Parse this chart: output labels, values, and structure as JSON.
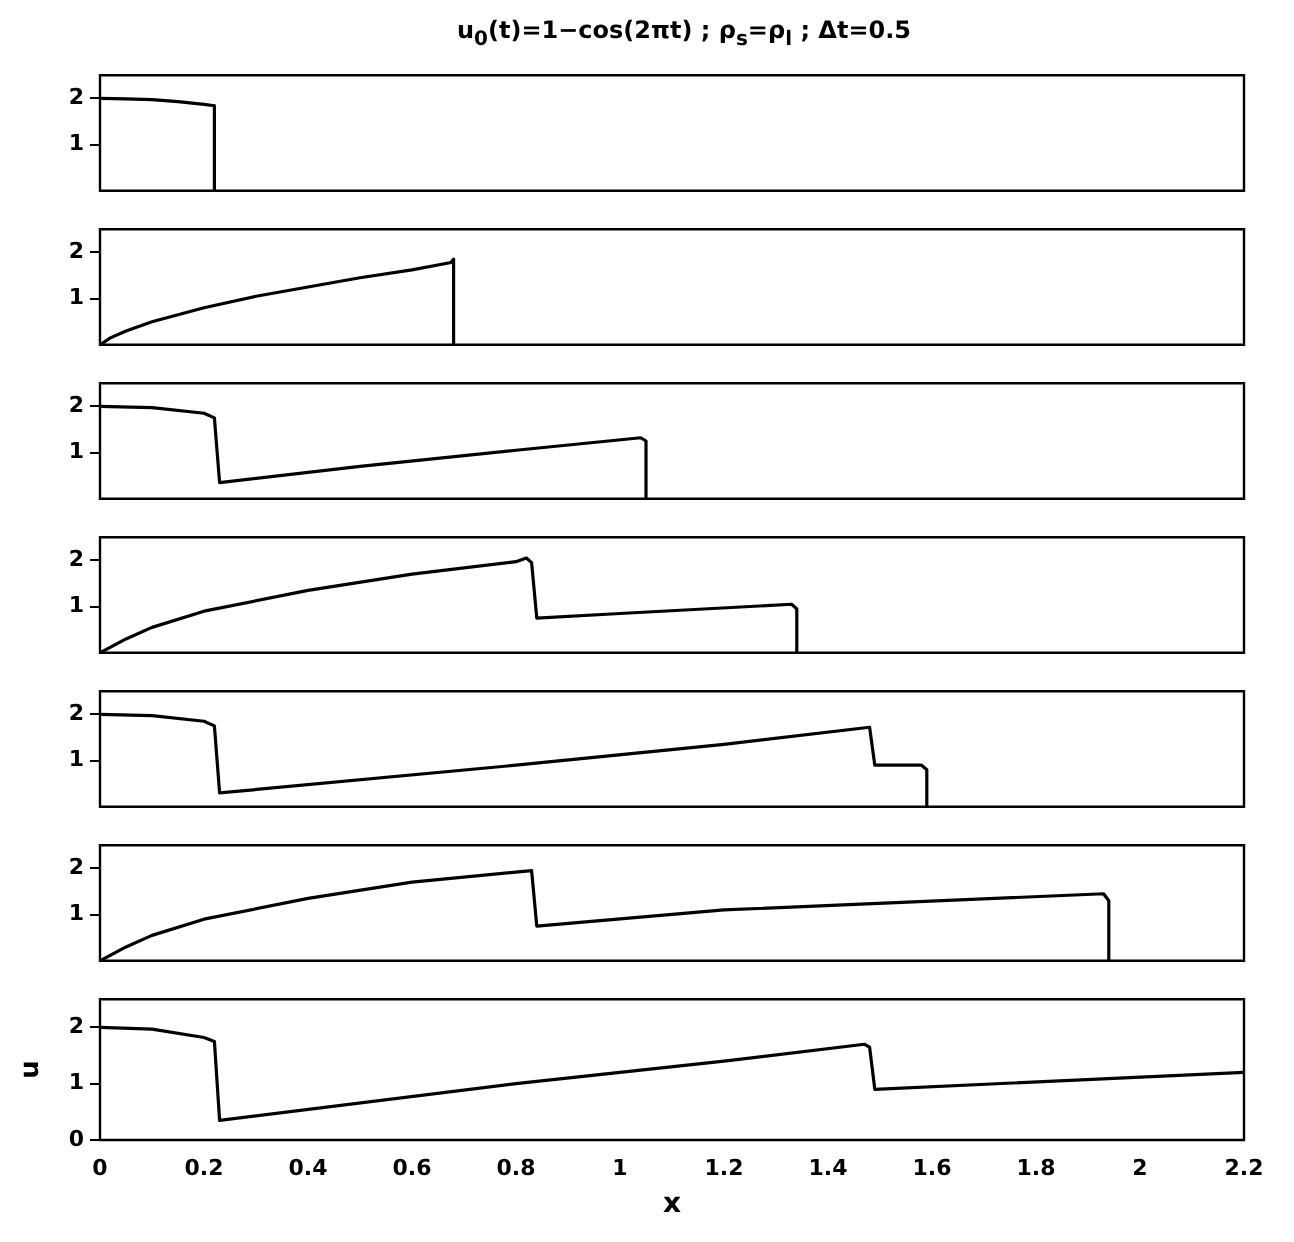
{
  "chart_data": [
    {
      "type": "line",
      "title": "u$_{0}$(t)=1−cos(2πt) ;   ρ$_{s}$=ρ$_{l}$ ;   Δt=0.5",
      "x": [
        0,
        0.05,
        0.1,
        0.15,
        0.2,
        0.22,
        0.22
      ],
      "series": [
        {
          "color": "#000000",
          "values": [
            2,
            1.99,
            1.97,
            1.93,
            1.87,
            1.84,
            0
          ]
        }
      ],
      "xlim": [
        0,
        2.2
      ],
      "ylim": [
        0,
        2.5
      ],
      "xticks": [
        0,
        0.2,
        0.4,
        0.6,
        0.8,
        1,
        1.2,
        1.4,
        1.6,
        1.8,
        2,
        2.2
      ],
      "yticks": [
        1,
        2
      ],
      "tick_labels": "y"
    },
    {
      "type": "line",
      "x": [
        0,
        0.02,
        0.05,
        0.1,
        0.2,
        0.3,
        0.4,
        0.5,
        0.6,
        0.675,
        0.68,
        0.68
      ],
      "series": [
        {
          "color": "#000000",
          "values": [
            0,
            0.15,
            0.3,
            0.5,
            0.8,
            1.05,
            1.25,
            1.45,
            1.62,
            1.78,
            1.85,
            0
          ]
        }
      ],
      "xlim": [
        0,
        2.2
      ],
      "ylim": [
        0,
        2.5
      ],
      "xticks": [
        0,
        0.2,
        0.4,
        0.6,
        0.8,
        1,
        1.2,
        1.4,
        1.6,
        1.8,
        2,
        2.2
      ],
      "yticks": [
        1,
        2
      ],
      "tick_labels": "y"
    },
    {
      "type": "line",
      "x": [
        0,
        0.1,
        0.2,
        0.22,
        0.23,
        0.5,
        0.8,
        1.04,
        1.05,
        1.05
      ],
      "series": [
        {
          "color": "#000000",
          "values": [
            2,
            1.97,
            1.85,
            1.75,
            0.35,
            0.7,
            1.05,
            1.32,
            1.25,
            0
          ]
        }
      ],
      "xlim": [
        0,
        2.2
      ],
      "ylim": [
        0,
        2.5
      ],
      "xticks": [
        0,
        0.2,
        0.4,
        0.6,
        0.8,
        1,
        1.2,
        1.4,
        1.6,
        1.8,
        2,
        2.2
      ],
      "yticks": [
        1,
        2
      ],
      "tick_labels": "y"
    },
    {
      "type": "line",
      "x": [
        0,
        0.05,
        0.1,
        0.2,
        0.4,
        0.6,
        0.8,
        0.82,
        0.83,
        0.84,
        1,
        1.33,
        1.34,
        1.34
      ],
      "series": [
        {
          "color": "#000000",
          "values": [
            0,
            0.3,
            0.55,
            0.9,
            1.35,
            1.7,
            1.97,
            2.05,
            1.95,
            0.75,
            0.85,
            1.05,
            0.95,
            0
          ]
        }
      ],
      "xlim": [
        0,
        2.2
      ],
      "ylim": [
        0,
        2.5
      ],
      "xticks": [
        0,
        0.2,
        0.4,
        0.6,
        0.8,
        1,
        1.2,
        1.4,
        1.6,
        1.8,
        2,
        2.2
      ],
      "yticks": [
        1,
        2
      ],
      "tick_labels": "y"
    },
    {
      "type": "line",
      "x": [
        0,
        0.1,
        0.2,
        0.22,
        0.23,
        0.8,
        1.2,
        1.48,
        1.49,
        1.58,
        1.59,
        1.59
      ],
      "series": [
        {
          "color": "#000000",
          "values": [
            2,
            1.97,
            1.85,
            1.75,
            0.3,
            0.9,
            1.35,
            1.72,
            0.9,
            0.9,
            0.8,
            0
          ]
        }
      ],
      "xlim": [
        0,
        2.2
      ],
      "ylim": [
        0,
        2.5
      ],
      "xticks": [
        0,
        0.2,
        0.4,
        0.6,
        0.8,
        1,
        1.2,
        1.4,
        1.6,
        1.8,
        2,
        2.2
      ],
      "yticks": [
        1,
        2
      ],
      "tick_labels": "y"
    },
    {
      "type": "line",
      "x": [
        0,
        0.05,
        0.1,
        0.2,
        0.4,
        0.6,
        0.83,
        0.84,
        1.2,
        1.93,
        1.94,
        1.94
      ],
      "series": [
        {
          "color": "#000000",
          "values": [
            0,
            0.3,
            0.55,
            0.9,
            1.35,
            1.7,
            1.95,
            0.75,
            1.1,
            1.45,
            1.3,
            0
          ]
        }
      ],
      "xlim": [
        0,
        2.2
      ],
      "ylim": [
        0,
        2.5
      ],
      "xticks": [
        0,
        0.2,
        0.4,
        0.6,
        0.8,
        1,
        1.2,
        1.4,
        1.6,
        1.8,
        2,
        2.2
      ],
      "yticks": [
        1,
        2
      ],
      "tick_labels": "y"
    },
    {
      "type": "line",
      "xlabel": "x",
      "ylabel": "u",
      "x": [
        0,
        0.1,
        0.2,
        0.22,
        0.23,
        0.8,
        1.2,
        1.47,
        1.48,
        1.49,
        2.2
      ],
      "series": [
        {
          "color": "#000000",
          "values": [
            2,
            1.97,
            1.82,
            1.75,
            0.35,
            1,
            1.4,
            1.7,
            1.65,
            0.9,
            1.2
          ]
        }
      ],
      "xlim": [
        0,
        2.2
      ],
      "ylim": [
        0,
        2.5
      ],
      "xticks": [
        0,
        0.2,
        0.4,
        0.6,
        0.8,
        1,
        1.2,
        1.4,
        1.6,
        1.8,
        2,
        2.2
      ],
      "yticks": [
        0,
        1,
        2
      ]
    }
  ]
}
